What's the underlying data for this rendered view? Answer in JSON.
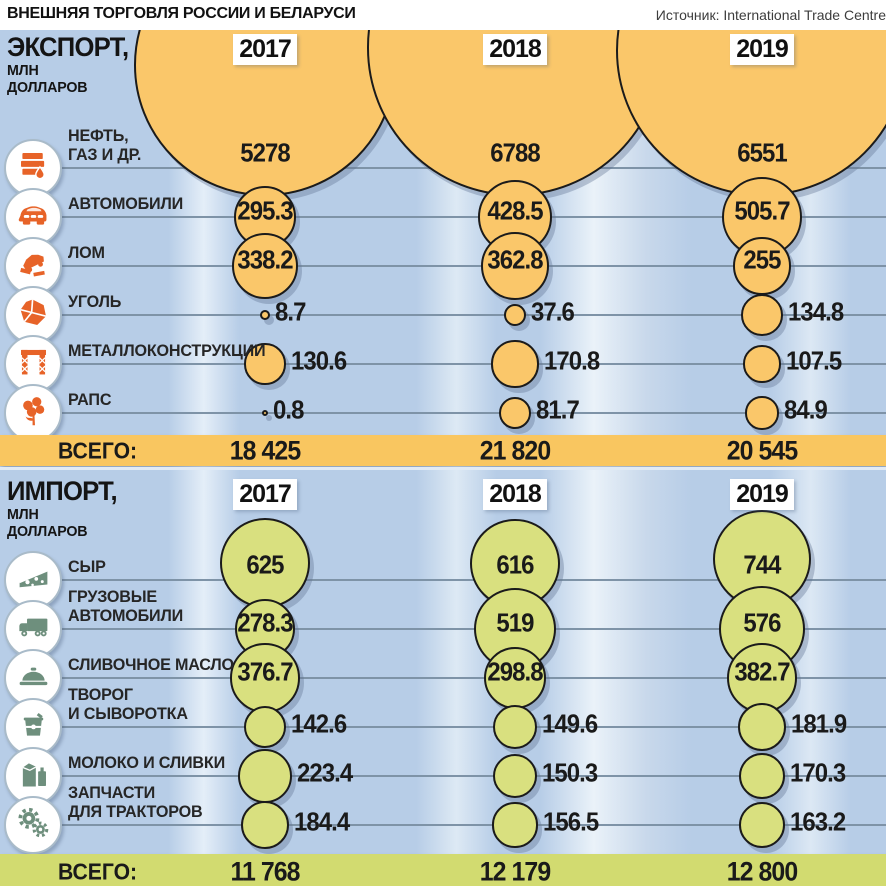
{
  "header": {
    "title": "ВНЕШНЯЯ ТОРГОВЛЯ РОССИИ И БЕЛАРУСИ",
    "source": "Источник: International Trade Centre"
  },
  "chart_data": [
    {
      "id": "export",
      "type": "bubble",
      "title": "ЭКСПОРТ,",
      "unit_lines": [
        "МЛН",
        "ДОЛЛАРОВ"
      ],
      "years": [
        "2017",
        "2018",
        "2019"
      ],
      "rows": [
        {
          "label_lines": [
            "НЕФТЬ,",
            "ГАЗ И ДР."
          ],
          "icon": "oil-barrels-icon"
        },
        {
          "label_lines": [
            "АВТОМОБИЛИ"
          ],
          "icon": "car-icon"
        },
        {
          "label_lines": [
            "ЛОМ"
          ],
          "icon": "scrap-metal-icon"
        },
        {
          "label_lines": [
            "УГОЛЬ"
          ],
          "icon": "coal-icon"
        },
        {
          "label_lines": [
            "МЕТАЛЛОКОНСТРУКЦИИ"
          ],
          "icon": "metal-structure-icon"
        },
        {
          "label_lines": [
            "РАПС"
          ],
          "icon": "rapeseed-icon"
        }
      ],
      "series": [
        {
          "year": "2017",
          "values": [
            5278,
            295.3,
            338.2,
            8.7,
            130.6,
            0.8
          ]
        },
        {
          "year": "2018",
          "values": [
            6788,
            428.5,
            362.8,
            37.6,
            170.8,
            81.7
          ]
        },
        {
          "year": "2019",
          "values": [
            6551,
            505.7,
            255,
            134.8,
            107.5,
            84.9
          ]
        }
      ],
      "total_label": "ВСЕГО:",
      "totals": [
        "18 425",
        "21 820",
        "20 545"
      ],
      "bubble_color": "#FAC76A",
      "bar_color": "#F9C660",
      "icon_color": "#E76328"
    },
    {
      "id": "import",
      "type": "bubble",
      "title": "ИМПОРТ,",
      "unit_lines": [
        "МЛН",
        "ДОЛЛАРОВ"
      ],
      "years": [
        "2017",
        "2018",
        "2019"
      ],
      "rows": [
        {
          "label_lines": [
            "СЫР"
          ],
          "icon": "cheese-icon"
        },
        {
          "label_lines": [
            "ГРУЗОВЫЕ",
            "АВТОМОБИЛИ"
          ],
          "icon": "truck-icon"
        },
        {
          "label_lines": [
            "СЛИВОЧНОЕ МАСЛО"
          ],
          "icon": "butter-icon"
        },
        {
          "label_lines": [
            "ТВОРОГ",
            "И СЫВОРОТКА"
          ],
          "icon": "curd-tub-icon"
        },
        {
          "label_lines": [
            "МОЛОКО И СЛИВКИ"
          ],
          "icon": "milk-icon"
        },
        {
          "label_lines": [
            "ЗАПЧАСТИ",
            "ДЛЯ ТРАКТОРОВ"
          ],
          "icon": "gears-icon"
        }
      ],
      "series": [
        {
          "year": "2017",
          "values": [
            625,
            278.3,
            376.7,
            142.6,
            223.4,
            184.4
          ]
        },
        {
          "year": "2018",
          "values": [
            616,
            519,
            298.8,
            149.6,
            150.3,
            156.5
          ]
        },
        {
          "year": "2019",
          "values": [
            744,
            576,
            382.7,
            181.9,
            170.3,
            163.2
          ]
        }
      ],
      "total_label": "ВСЕГО:",
      "totals": [
        "11 768",
        "12 179",
        "12 800"
      ],
      "bubble_color": "#D9E07F",
      "bar_color": "#D2DB70",
      "icon_color": "#6E8F7D"
    }
  ]
}
